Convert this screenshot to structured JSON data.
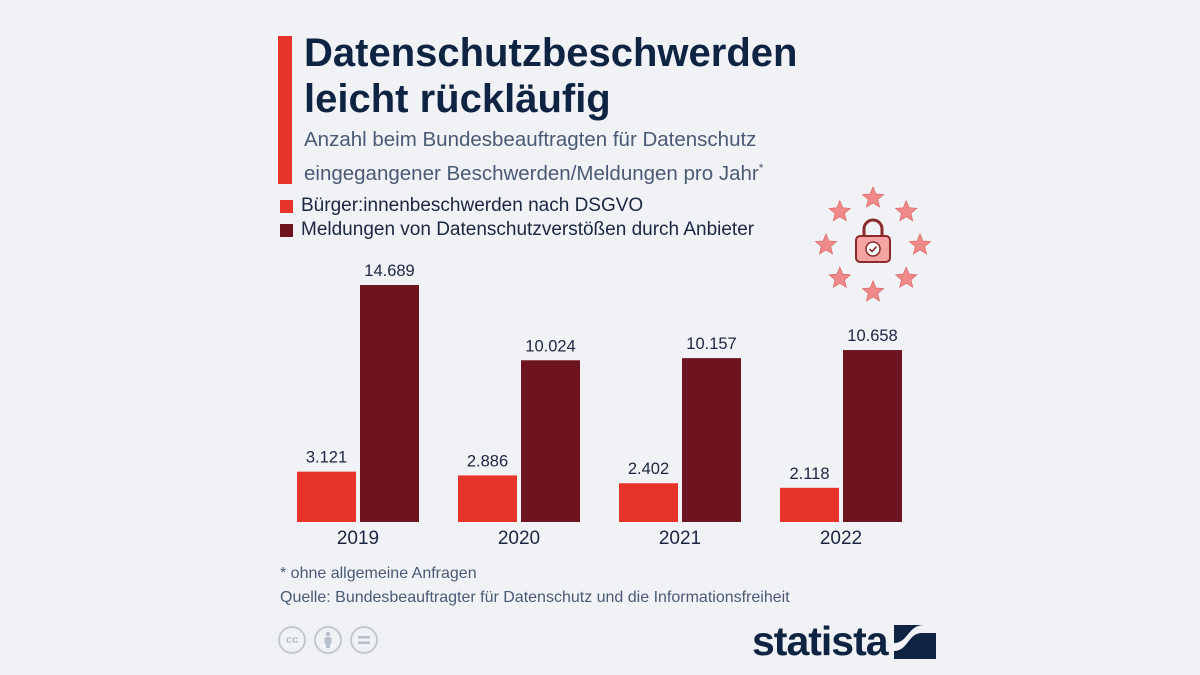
{
  "title_line1": "Datenschutzbeschwerden",
  "title_line2": "leicht rückläufig",
  "subtitle_line1": "Anzahl beim Bundesbeauftragten für Datenschutz",
  "subtitle_line2": "eingegangener Beschwerden/Meldungen pro Jahr",
  "subtitle_footnote_marker": "*",
  "footnote": "* ohne allgemeine Anfragen",
  "source": "Quelle: Bundesbeauftragter für Datenschutz und die Informationsfreiheit",
  "brand": "statista",
  "license_icons": [
    "creative-commons-icon",
    "attribution-icon",
    "no-derivatives-icon"
  ],
  "illustration": "padlock-with-eu-stars-icon",
  "colors": {
    "accent": "#e8332a",
    "series1": "#e8332a",
    "series2": "#6d1420",
    "title": "#0f2342",
    "stars": "#f08a8a"
  },
  "chart_data": {
    "type": "bar",
    "title": "Datenschutzbeschwerden leicht rückläufig",
    "subtitle": "Anzahl beim Bundesbeauftragten für Datenschutz eingegangener Beschwerden/Meldungen pro Jahr*",
    "xlabel": "",
    "ylabel": "",
    "categories": [
      "2019",
      "2020",
      "2021",
      "2022"
    ],
    "series": [
      {
        "name": "Bürger:innenbeschwerden nach DSGVO",
        "color": "#e8332a",
        "values": [
          3121,
          2886,
          2402,
          2118
        ],
        "labels": [
          "3.121",
          "2.886",
          "2.402",
          "2.118"
        ]
      },
      {
        "name": "Meldungen von Datenschutzverstößen durch Anbieter",
        "color": "#6d1420",
        "values": [
          14689,
          10024,
          10157,
          10658
        ],
        "labels": [
          "14.689",
          "10.024",
          "10.157",
          "10.658"
        ]
      }
    ],
    "ylim": [
      0,
      14689
    ],
    "grid": false,
    "legend_position": "top-left"
  }
}
